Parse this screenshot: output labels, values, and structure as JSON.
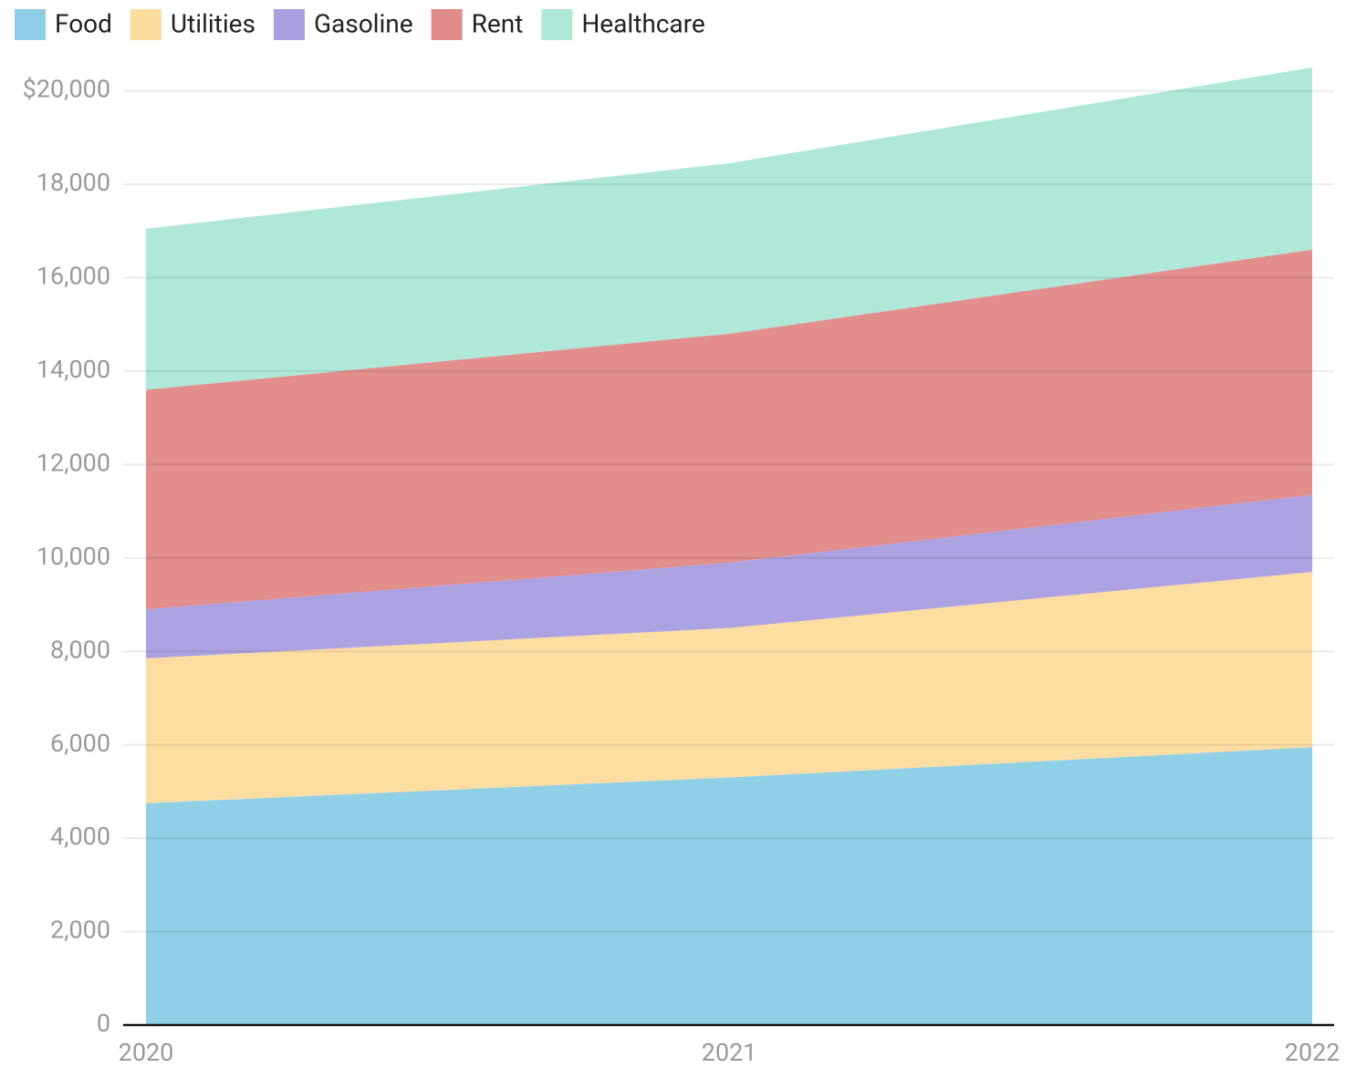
{
  "chart_data": {
    "type": "stacked_area",
    "x": [
      2020,
      2021,
      2022
    ],
    "xlim": [
      2020,
      2022
    ],
    "xticks": [
      2020,
      2021,
      2022
    ],
    "ylim": [
      0,
      20500
    ],
    "yticks": [
      0,
      {
        "value": 2000,
        "label": "2,000"
      },
      {
        "value": 4000,
        "label": "4,000"
      },
      {
        "value": 6000,
        "label": "6,000"
      },
      {
        "value": 8000,
        "label": "8,000"
      },
      {
        "value": 10000,
        "label": "10,000"
      },
      {
        "value": 12000,
        "label": "12,000"
      },
      {
        "value": 14000,
        "label": "14,000"
      },
      {
        "value": 16000,
        "label": "16,000"
      },
      {
        "value": 18000,
        "label": "18,000"
      },
      {
        "value": 20000,
        "label": "$20,000"
      }
    ],
    "grid": true,
    "legend": "top-left",
    "series": [
      {
        "name": "Food",
        "color": "#8ecfe6",
        "values": [
          4750,
          5300,
          5950
        ]
      },
      {
        "name": "Utilities",
        "color": "#fddca0",
        "values": [
          3100,
          3200,
          3750
        ]
      },
      {
        "name": "Gasoline",
        "color": "#aaa0e0",
        "values": [
          1050,
          1400,
          1650
        ]
      },
      {
        "name": "Rent",
        "color": "#e08c8a",
        "values": [
          4700,
          4900,
          5250
        ]
      },
      {
        "name": "Healthcare",
        "color": "#ade8d8",
        "values": [
          3450,
          3650,
          3900
        ]
      }
    ]
  }
}
